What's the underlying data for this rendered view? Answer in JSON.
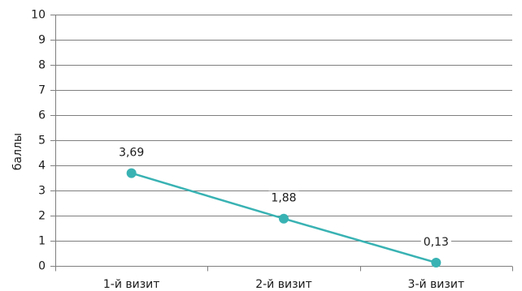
{
  "chart_data": {
    "type": "line",
    "categories": [
      "1-й визит",
      "2-й визит",
      "3-й визит"
    ],
    "series": [
      {
        "values": [
          3.69,
          1.88,
          0.13
        ],
        "data_labels": [
          "3,69",
          "1,88",
          "0,13"
        ]
      }
    ],
    "ylabel": "баллы",
    "xlabel": "",
    "ylim": [
      0,
      10
    ],
    "yticks": [
      0,
      1,
      2,
      3,
      4,
      5,
      6,
      7,
      8,
      9,
      10
    ],
    "ytick_labels": [
      "0",
      "1",
      "2",
      "3",
      "4",
      "5",
      "6",
      "7",
      "8",
      "9",
      "10"
    ],
    "grid": true,
    "legend": "none",
    "colors": {
      "line": "#39b2b3",
      "grid": "#7f7f7f",
      "axis": "#7f7f7f",
      "text": "#1a1a1a"
    }
  }
}
